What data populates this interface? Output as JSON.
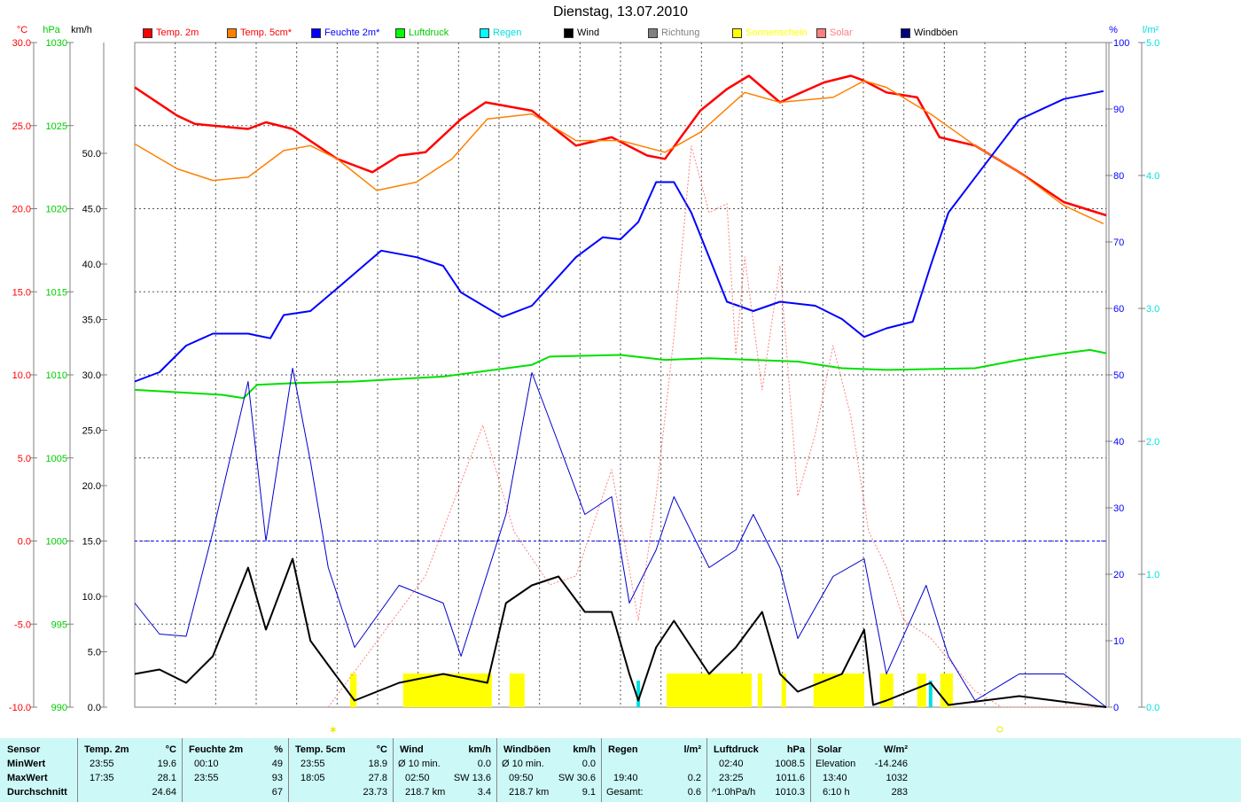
{
  "title": "Dienstag, 13.07.2010",
  "legend": [
    {
      "label": "Temp. 2m",
      "color": "#ff0000",
      "text_color": "#ff0000"
    },
    {
      "label": "Temp. 5cm*",
      "color": "#ff8000",
      "text_color": "#ff0000"
    },
    {
      "label": "Feuchte 2m*",
      "color": "#0000ff",
      "text_color": "#0000ff"
    },
    {
      "label": "Luftdruck",
      "color": "#00ff00",
      "text_color": "#00cc00"
    },
    {
      "label": "Regen",
      "color": "#00ffff",
      "text_color": "#00e0e0"
    },
    {
      "label": "Wind",
      "color": "#000000",
      "text_color": "#000000"
    },
    {
      "label": "Richtung",
      "color": "#808080",
      "text_color": "#808080"
    },
    {
      "label": "Sonnenschein",
      "color": "#ffff00",
      "text_color": "#ffff00"
    },
    {
      "label": "Solar",
      "color": "#ff8080",
      "text_color": "#ff8080"
    },
    {
      "label": "Windböen",
      "color": "#000080",
      "text_color": "#000000"
    }
  ],
  "axis_units": {
    "temp": "°C",
    "pressure": "hPa",
    "wind": "km/h",
    "humidity": "%",
    "rain": "l/m²"
  },
  "chart_data": {
    "type": "line",
    "title": "Dienstag, 13.07.2010",
    "x_unit": "hour",
    "xlim": [
      0,
      24
    ],
    "axes": {
      "temp": {
        "range": [
          -10,
          30
        ],
        "ticks": [
          "30.0",
          "25.0",
          "20.0",
          "15.0",
          "10.0",
          "5.0",
          "0.0",
          "-5.0",
          "-10.0"
        ]
      },
      "pressure": {
        "range": [
          990,
          1030
        ],
        "ticks": [
          "1030",
          "1025",
          "1020",
          "1015",
          "1010",
          "1005",
          "1000",
          "995",
          "990"
        ]
      },
      "wind": {
        "range": [
          0,
          60
        ],
        "ticks": [
          "50.0",
          "45.0",
          "40.0",
          "35.0",
          "30.0",
          "25.0",
          "20.0",
          "15.0",
          "10.0",
          "5.0",
          "0.0"
        ]
      },
      "humidity": {
        "range": [
          0,
          100
        ],
        "ticks": [
          "100",
          "90",
          "80",
          "70",
          "60",
          "50",
          "40",
          "30",
          "20",
          "10",
          "0"
        ]
      },
      "rain": {
        "range": [
          0,
          5
        ],
        "ticks": [
          "5.0",
          "4.0",
          "3.0",
          "2.0",
          "1.0",
          "0.0"
        ]
      },
      "solar": {
        "range": [
          0,
          1200
        ]
      }
    },
    "series": [
      {
        "name": "Temp. 2m",
        "axis": "temp",
        "color": "#ff0000",
        "width": 2.5,
        "points": [
          [
            0,
            27.3
          ],
          [
            1.05,
            25.6
          ],
          [
            1.49,
            25.1
          ],
          [
            2.8,
            24.8
          ],
          [
            3.24,
            25.2
          ],
          [
            3.9,
            24.8
          ],
          [
            5.0,
            23.0
          ],
          [
            5.87,
            22.2
          ],
          [
            6.53,
            23.2
          ],
          [
            7.18,
            23.4
          ],
          [
            8.06,
            25.4
          ],
          [
            8.67,
            26.4
          ],
          [
            9.81,
            25.9
          ],
          [
            10.9,
            23.8
          ],
          [
            11.78,
            24.3
          ],
          [
            12.66,
            23.2
          ],
          [
            13.1,
            23.0
          ],
          [
            13.97,
            25.9
          ],
          [
            14.63,
            27.2
          ],
          [
            15.17,
            28.0
          ],
          [
            15.94,
            26.4
          ],
          [
            16.38,
            26.9
          ],
          [
            17.03,
            27.6
          ],
          [
            17.69,
            28.0
          ],
          [
            18.02,
            27.7
          ],
          [
            18.57,
            27.0
          ],
          [
            19.33,
            26.7
          ],
          [
            19.88,
            24.3
          ],
          [
            20.76,
            23.8
          ],
          [
            21.85,
            22.2
          ],
          [
            22.95,
            20.4
          ],
          [
            24,
            19.6
          ]
        ]
      },
      {
        "name": "Temp. 5cm*",
        "axis": "temp",
        "color": "#ff8000",
        "width": 1.5,
        "points": [
          [
            0,
            23.9
          ],
          [
            1.05,
            22.4
          ],
          [
            1.93,
            21.7
          ],
          [
            2.8,
            21.9
          ],
          [
            3.68,
            23.5
          ],
          [
            4.34,
            23.8
          ],
          [
            5.0,
            23.0
          ],
          [
            5.98,
            21.1
          ],
          [
            6.96,
            21.6
          ],
          [
            7.84,
            23.0
          ],
          [
            8.71,
            25.4
          ],
          [
            9.81,
            25.7
          ],
          [
            10.9,
            24.1
          ],
          [
            12.0,
            24.1
          ],
          [
            13.1,
            23.4
          ],
          [
            13.97,
            24.6
          ],
          [
            15.07,
            27.0
          ],
          [
            15.94,
            26.4
          ],
          [
            17.25,
            26.7
          ],
          [
            18.02,
            27.7
          ],
          [
            18.57,
            27.3
          ],
          [
            19.66,
            25.7
          ],
          [
            20.76,
            23.8
          ],
          [
            21.85,
            22.2
          ],
          [
            22.95,
            20.2
          ],
          [
            23.93,
            19.1
          ]
        ]
      },
      {
        "name": "Feuchte 2m*",
        "axis": "humidity",
        "color": "#0000ff",
        "width": 2,
        "points": [
          [
            0,
            49
          ],
          [
            0.61,
            50.4
          ],
          [
            1.27,
            54.4
          ],
          [
            1.93,
            56.2
          ],
          [
            2.8,
            56.2
          ],
          [
            3.35,
            55.5
          ],
          [
            3.68,
            59
          ],
          [
            4.34,
            59.6
          ],
          [
            5.0,
            63
          ],
          [
            6.09,
            68.7
          ],
          [
            6.96,
            67.7
          ],
          [
            7.62,
            66.4
          ],
          [
            8.06,
            62.4
          ],
          [
            9.08,
            58.7
          ],
          [
            9.81,
            60.4
          ],
          [
            10.9,
            67.7
          ],
          [
            11.56,
            70.7
          ],
          [
            12.0,
            70.4
          ],
          [
            12.44,
            73
          ],
          [
            12.88,
            79
          ],
          [
            13.32,
            79
          ],
          [
            13.75,
            74.4
          ],
          [
            14.19,
            67.7
          ],
          [
            14.63,
            61
          ],
          [
            15.28,
            59.6
          ],
          [
            15.94,
            61
          ],
          [
            16.81,
            60.4
          ],
          [
            17.47,
            58.4
          ],
          [
            18.02,
            55.7
          ],
          [
            18.57,
            57
          ],
          [
            19.22,
            58
          ],
          [
            19.66,
            66.4
          ],
          [
            20.1,
            74.4
          ],
          [
            20.76,
            79.7
          ],
          [
            21.85,
            88.4
          ],
          [
            22.95,
            91.5
          ],
          [
            23.93,
            92.7
          ]
        ]
      },
      {
        "name": "Luftdruck",
        "axis": "pressure",
        "color": "#00e000",
        "width": 2,
        "points": [
          [
            0,
            1009.1
          ],
          [
            2.15,
            1008.8
          ],
          [
            2.69,
            1008.6
          ],
          [
            3.02,
            1009.4
          ],
          [
            3.9,
            1009.5
          ],
          [
            5.43,
            1009.6
          ],
          [
            7.62,
            1009.9
          ],
          [
            9.81,
            1010.6
          ],
          [
            10.25,
            1011.1
          ],
          [
            12.0,
            1011.2
          ],
          [
            13.1,
            1010.9
          ],
          [
            14.19,
            1011.0
          ],
          [
            15.28,
            1010.9
          ],
          [
            16.38,
            1010.8
          ],
          [
            17.47,
            1010.4
          ],
          [
            18.57,
            1010.3
          ],
          [
            20.76,
            1010.4
          ],
          [
            21.85,
            1010.9
          ],
          [
            22.95,
            1011.3
          ],
          [
            23.6,
            1011.5
          ],
          [
            24,
            1011.3
          ]
        ]
      },
      {
        "name": "Solar",
        "axis": "solar",
        "color": "#ff8080",
        "width": 1,
        "dash": "2,2",
        "points": [
          [
            4.78,
            0
          ],
          [
            7.18,
            237
          ],
          [
            8.6,
            509
          ],
          [
            9.37,
            317
          ],
          [
            10.25,
            221
          ],
          [
            10.9,
            237
          ],
          [
            11.78,
            429
          ],
          [
            12.44,
            157
          ],
          [
            12.88,
            381
          ],
          [
            13.32,
            669
          ],
          [
            13.75,
            1013
          ],
          [
            14.19,
            893
          ],
          [
            14.63,
            909
          ],
          [
            14.85,
            637
          ],
          [
            15.07,
            813
          ],
          [
            15.5,
            573
          ],
          [
            15.94,
            797
          ],
          [
            16.38,
            381
          ],
          [
            16.81,
            493
          ],
          [
            17.25,
            653
          ],
          [
            17.69,
            525
          ],
          [
            18.13,
            317
          ],
          [
            18.57,
            253
          ],
          [
            19.0,
            157
          ],
          [
            19.66,
            125
          ],
          [
            20.76,
            29
          ],
          [
            21.42,
            0
          ],
          [
            24,
            0
          ]
        ]
      },
      {
        "name": "Windböen",
        "axis": "wind",
        "color": "#0000cc",
        "width": 1,
        "points": [
          [
            0,
            9.4
          ],
          [
            0.61,
            6.6
          ],
          [
            1.27,
            6.4
          ],
          [
            1.93,
            15.8
          ],
          [
            2.8,
            29.4
          ],
          [
            3.24,
            15.0
          ],
          [
            3.9,
            30.6
          ],
          [
            4.34,
            22.2
          ],
          [
            4.78,
            12.6
          ],
          [
            5.43,
            5.4
          ],
          [
            6.53,
            11.0
          ],
          [
            7.62,
            9.4
          ],
          [
            8.06,
            4.6
          ],
          [
            9.17,
            17.4
          ],
          [
            9.81,
            30.2
          ],
          [
            10.47,
            23.8
          ],
          [
            11.12,
            17.4
          ],
          [
            11.78,
            19.0
          ],
          [
            12.22,
            9.4
          ],
          [
            12.88,
            14.2
          ],
          [
            13.32,
            19.0
          ],
          [
            14.19,
            12.6
          ],
          [
            14.85,
            14.2
          ],
          [
            15.28,
            17.4
          ],
          [
            15.94,
            12.6
          ],
          [
            16.38,
            6.2
          ],
          [
            17.25,
            11.8
          ],
          [
            18.02,
            13.4
          ],
          [
            18.57,
            3.0
          ],
          [
            19.55,
            11.0
          ],
          [
            20.1,
            4.6
          ],
          [
            20.76,
            0.6
          ],
          [
            21.85,
            3.0
          ],
          [
            22.95,
            3.0
          ],
          [
            24,
            0
          ]
        ]
      },
      {
        "name": "Wind",
        "axis": "wind",
        "color": "#000000",
        "width": 2,
        "points": [
          [
            0,
            3.0
          ],
          [
            0.61,
            3.4
          ],
          [
            1.27,
            2.2
          ],
          [
            1.93,
            4.6
          ],
          [
            2.8,
            12.6
          ],
          [
            3.24,
            7.0
          ],
          [
            3.9,
            13.4
          ],
          [
            4.34,
            6.0
          ],
          [
            4.78,
            3.8
          ],
          [
            5.43,
            0.6
          ],
          [
            6.53,
            2.2
          ],
          [
            7.62,
            3.0
          ],
          [
            8.71,
            2.2
          ],
          [
            9.17,
            9.4
          ],
          [
            9.81,
            11.0
          ],
          [
            10.47,
            11.8
          ],
          [
            11.12,
            8.6
          ],
          [
            11.78,
            8.6
          ],
          [
            12.22,
            3.0
          ],
          [
            12.44,
            0.6
          ],
          [
            12.88,
            5.4
          ],
          [
            13.32,
            7.8
          ],
          [
            14.19,
            3.0
          ],
          [
            14.85,
            5.4
          ],
          [
            15.5,
            8.6
          ],
          [
            15.94,
            3.0
          ],
          [
            16.38,
            1.4
          ],
          [
            17.47,
            3.0
          ],
          [
            18.02,
            7.0
          ],
          [
            18.24,
            0.2
          ],
          [
            18.57,
            0.6
          ],
          [
            19.66,
            2.2
          ],
          [
            20.1,
            0.2
          ],
          [
            21.85,
            1.0
          ],
          [
            24,
            0
          ]
        ]
      }
    ],
    "sunshine_intervals": [
      [
        5.32,
        5.48
      ],
      [
        6.63,
        8.82
      ],
      [
        9.26,
        9.63
      ],
      [
        13.14,
        15.24
      ],
      [
        15.39,
        15.5
      ],
      [
        15.98,
        16.09
      ],
      [
        16.77,
        18.02
      ],
      [
        18.41,
        18.74
      ],
      [
        19.33,
        19.55
      ],
      [
        19.9,
        20.21
      ]
    ],
    "rain_marks": [
      12.44,
      19.66
    ],
    "reference_lines": [
      {
        "axis": "temp",
        "value": 0,
        "color": "#0000ff"
      }
    ],
    "sunrise_hour": 4.9,
    "sunset_hour": 21.37
  },
  "stats": {
    "headers": [
      {
        "name": "Sensor",
        "unit": ""
      },
      {
        "name": "Temp. 2m",
        "unit": "°C"
      },
      {
        "name": "Feuchte 2m",
        "unit": "%"
      },
      {
        "name": "Temp. 5cm",
        "unit": "°C"
      },
      {
        "name": "Wind",
        "unit": "km/h"
      },
      {
        "name": "Windböen",
        "unit": "km/h"
      },
      {
        "name": "Regen",
        "unit": "l/m²"
      },
      {
        "name": "Luftdruck",
        "unit": "hPa"
      },
      {
        "name": "Solar",
        "unit": "W/m²"
      }
    ],
    "row_labels": [
      "MinWert",
      "MaxWert",
      "Durchschnitt"
    ],
    "cells": [
      [
        [
          "23:55",
          "19.6"
        ],
        [
          "00:10",
          "49"
        ],
        [
          "23:55",
          "18.9"
        ],
        [
          "Ø 10 min.",
          "0.0"
        ],
        [
          "Ø 10 min.",
          "0.0"
        ],
        [
          "",
          ""
        ],
        [
          "02:40",
          "1008.5"
        ],
        [
          "Elevation",
          "-14.246"
        ]
      ],
      [
        [
          "17:35",
          "28.1"
        ],
        [
          "23:55",
          "93"
        ],
        [
          "18:05",
          "27.8"
        ],
        [
          "02:50",
          "SW 13.6"
        ],
        [
          "09:50",
          "SW 30.6"
        ],
        [
          "19:40",
          "0.2"
        ],
        [
          "23:25",
          "1011.6"
        ],
        [
          "13:40",
          "1032"
        ]
      ],
      [
        [
          "",
          "24.64"
        ],
        [
          "",
          "67"
        ],
        [
          "",
          "23.73"
        ],
        [
          "218.7 km",
          "3.4"
        ],
        [
          "218.7 km",
          "9.1"
        ],
        [
          "Gesamt:",
          "0.6"
        ],
        [
          "^1.0hPa/h",
          "1010.3"
        ],
        [
          "6:10 h",
          "283"
        ]
      ]
    ]
  }
}
